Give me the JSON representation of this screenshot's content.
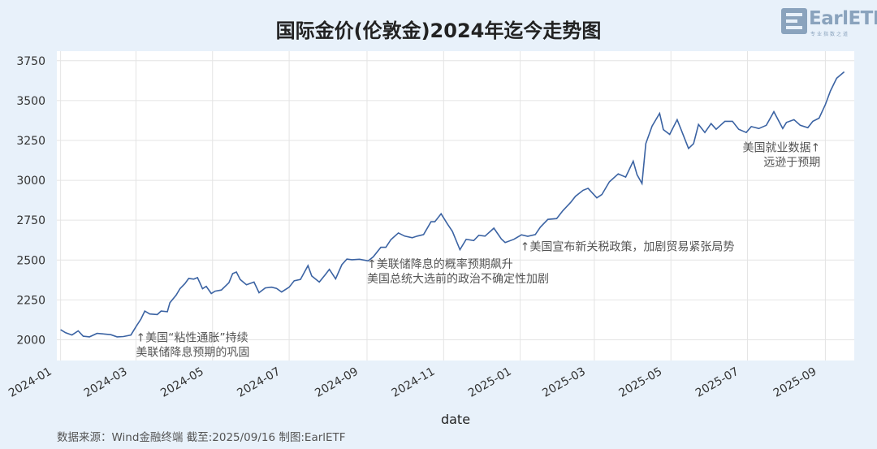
{
  "page": {
    "title": "国际金价(伦敦金)2024年迄今走势图",
    "source_note": "数据来源：Wind金融终端 截至:2025/09/16 制图:EarlETF",
    "logo": {
      "text": "EarlETF",
      "subtitle": "专业指数之道"
    }
  },
  "chart_data": {
    "type": "line",
    "title": "国际金价(伦敦金)2024年迄今走势图",
    "xlabel": "date",
    "ylabel": "",
    "x_range": [
      "2023-12-29",
      "2025-09-24"
    ],
    "ylim": [
      1870,
      3810
    ],
    "yticks": [
      2000,
      2250,
      2500,
      2750,
      3000,
      3250,
      3500,
      3750
    ],
    "xticks": [
      "2024-01",
      "2024-03",
      "2024-05",
      "2024-07",
      "2024-09",
      "2024-11",
      "2025-01",
      "2025-03",
      "2025-05",
      "2025-07",
      "2025-09"
    ],
    "grid": true,
    "line_color": "#3b63a3",
    "series": [
      {
        "name": "",
        "x": [
          "2024-01-01",
          "2024-01-05",
          "2024-01-10",
          "2024-01-15",
          "2024-01-19",
          "2024-01-24",
          "2024-01-30",
          "2024-02-05",
          "2024-02-10",
          "2024-02-15",
          "2024-02-20",
          "2024-02-26",
          "2024-03-01",
          "2024-03-05",
          "2024-03-08",
          "2024-03-12",
          "2024-03-18",
          "2024-03-21",
          "2024-03-26",
          "2024-03-28",
          "2024-04-02",
          "2024-04-05",
          "2024-04-09",
          "2024-04-12",
          "2024-04-16",
          "2024-04-19",
          "2024-04-23",
          "2024-04-26",
          "2024-04-30",
          "2024-05-03",
          "2024-05-08",
          "2024-05-14",
          "2024-05-17",
          "2024-05-20",
          "2024-05-23",
          "2024-05-28",
          "2024-06-03",
          "2024-06-07",
          "2024-06-12",
          "2024-06-17",
          "2024-06-21",
          "2024-06-25",
          "2024-07-01",
          "2024-07-05",
          "2024-07-10",
          "2024-07-16",
          "2024-07-19",
          "2024-07-25",
          "2024-07-30",
          "2024-08-02",
          "2024-08-07",
          "2024-08-12",
          "2024-08-16",
          "2024-08-20",
          "2024-08-26",
          "2024-09-02",
          "2024-09-06",
          "2024-09-12",
          "2024-09-16",
          "2024-09-20",
          "2024-09-26",
          "2024-10-01",
          "2024-10-07",
          "2024-10-11",
          "2024-10-16",
          "2024-10-22",
          "2024-10-25",
          "2024-10-30",
          "2024-11-04",
          "2024-11-08",
          "2024-11-14",
          "2024-11-19",
          "2024-11-25",
          "2024-11-29",
          "2024-12-04",
          "2024-12-11",
          "2024-12-17",
          "2024-12-20",
          "2024-12-27",
          "2025-01-02",
          "2025-01-07",
          "2025-01-13",
          "2025-01-17",
          "2025-01-23",
          "2025-01-30",
          "2025-02-04",
          "2025-02-10",
          "2025-02-14",
          "2025-02-20",
          "2025-02-24",
          "2025-03-03",
          "2025-03-07",
          "2025-03-13",
          "2025-03-20",
          "2025-03-26",
          "2025-04-01",
          "2025-04-04",
          "2025-04-08",
          "2025-04-11",
          "2025-04-16",
          "2025-04-22",
          "2025-04-25",
          "2025-04-30",
          "2025-05-06",
          "2025-05-09",
          "2025-05-15",
          "2025-05-19",
          "2025-05-23",
          "2025-05-28",
          "2025-06-02",
          "2025-06-06",
          "2025-06-13",
          "2025-06-19",
          "2025-06-24",
          "2025-06-30",
          "2025-07-04",
          "2025-07-10",
          "2025-07-16",
          "2025-07-22",
          "2025-07-29",
          "2025-08-01",
          "2025-08-07",
          "2025-08-12",
          "2025-08-18",
          "2025-08-22",
          "2025-08-27",
          "2025-09-01",
          "2025-09-05",
          "2025-09-10",
          "2025-09-16"
        ],
        "values": [
          2063,
          2044,
          2030,
          2056,
          2022,
          2018,
          2040,
          2036,
          2032,
          2018,
          2020,
          2030,
          2082,
          2130,
          2180,
          2162,
          2158,
          2180,
          2176,
          2232,
          2280,
          2320,
          2352,
          2385,
          2380,
          2390,
          2320,
          2335,
          2290,
          2305,
          2312,
          2358,
          2415,
          2425,
          2378,
          2345,
          2362,
          2295,
          2325,
          2330,
          2322,
          2300,
          2330,
          2370,
          2378,
          2465,
          2400,
          2362,
          2410,
          2442,
          2382,
          2471,
          2506,
          2502,
          2505,
          2495,
          2520,
          2580,
          2580,
          2628,
          2670,
          2650,
          2640,
          2650,
          2660,
          2740,
          2740,
          2790,
          2727,
          2680,
          2565,
          2630,
          2622,
          2655,
          2650,
          2700,
          2632,
          2610,
          2630,
          2658,
          2649,
          2660,
          2706,
          2755,
          2760,
          2810,
          2860,
          2900,
          2937,
          2950,
          2890,
          2911,
          2990,
          3040,
          3020,
          3120,
          3035,
          2980,
          3230,
          3340,
          3420,
          3318,
          3288,
          3380,
          3320,
          3200,
          3230,
          3350,
          3300,
          3356,
          3320,
          3370,
          3370,
          3320,
          3300,
          3337,
          3325,
          3345,
          3430,
          3325,
          3363,
          3380,
          3345,
          3330,
          3370,
          3390,
          3475,
          3560,
          3640,
          3680
        ]
      }
    ],
    "annotations": [
      {
        "date": "2024-03-01",
        "value": 1990,
        "text": "↑美国“粘性通胀”持续\n美联储降息预期的巩固"
      },
      {
        "date": "2024-09-01",
        "value": 2450,
        "text": "↑美联储降息的概率预期飙升\n美国总统大选前的政治不确定性加剧"
      },
      {
        "date": "2025-01-01",
        "value": 2560,
        "text": "↑美国宣布新关税政策，加剧贸易紧张局势"
      },
      {
        "date": "2025-08-28",
        "value": 3180,
        "text": "美国就业数据↑\n远逊于预期"
      }
    ]
  }
}
